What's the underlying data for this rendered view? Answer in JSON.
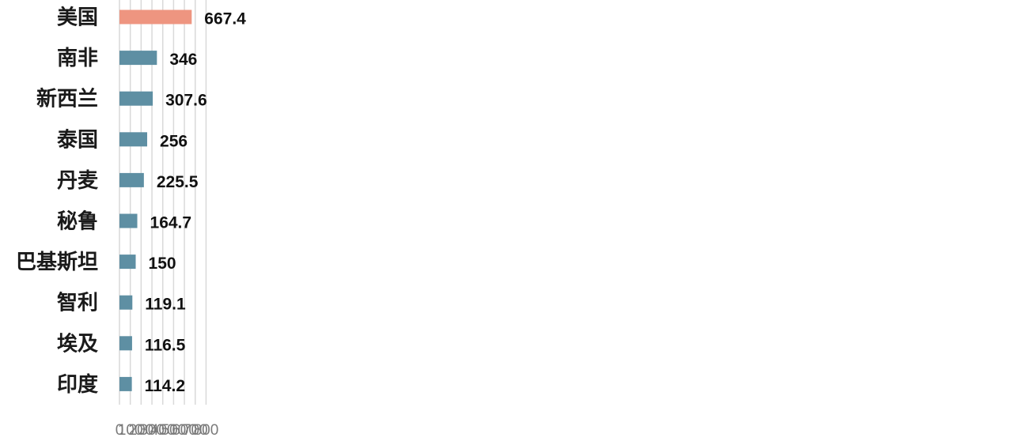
{
  "chart_data": {
    "type": "bar",
    "orientation": "horizontal",
    "title": "",
    "xlabel": "",
    "ylabel": "",
    "categories": [
      "美国",
      "南非",
      "新西兰",
      "泰国",
      "丹麦",
      "秘鲁",
      "巴基斯坦",
      "智利",
      "埃及",
      "印度"
    ],
    "values": [
      667.4,
      346,
      307.6,
      256,
      225.5,
      164.7,
      150,
      119.1,
      116.5,
      114.2
    ],
    "value_labels": [
      "667.4",
      "346",
      "307.6",
      "256",
      "225.5",
      "164.7",
      "150",
      "119.1",
      "116.5",
      "114.2"
    ],
    "xlim": [
      0,
      800
    ],
    "ticks": [
      0,
      100,
      200,
      300,
      400,
      500,
      600,
      700,
      800
    ],
    "tick_labels": [
      "0",
      "100",
      "200",
      "300",
      "400",
      "500",
      "600",
      "700",
      "800"
    ],
    "grid": "vertical",
    "legend": "none",
    "colors": {
      "highlight_bar": "#EE9580",
      "bar": "#5E8FA3",
      "grid": "#D9D9D9"
    },
    "highlight_index": 0
  }
}
